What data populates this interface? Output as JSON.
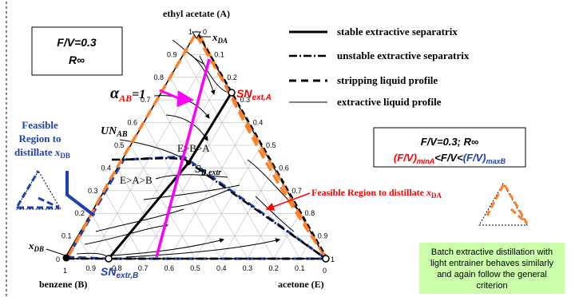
{
  "vertices": {
    "top": "ethyl acetate (A)",
    "left": "benzene (B)",
    "right": "acetone (E)"
  },
  "corner_labels": {
    "top_1": "1",
    "top_0": "0",
    "left_1": "1",
    "left_0": "0",
    "right_1": "1",
    "right_0": "0"
  },
  "left_ticks": [
    "0.9",
    "0.8",
    "0.7",
    "0.6",
    "0.5",
    "0.4",
    "0.3",
    "0.2",
    "0.1"
  ],
  "right_ticks": [
    "0.1",
    "0.2",
    "0.3",
    "0.4",
    "0.5",
    "0.6",
    "0.7",
    "0.8",
    "0.9"
  ],
  "bottom_ticks": [
    "0.9",
    "0.8",
    "0.7",
    "0.6",
    "0.5",
    "0.4",
    "0.3",
    "0.2",
    "0.1"
  ],
  "params_box": {
    "line1": "F/V=0.3",
    "line2": "R∞"
  },
  "legend": [
    {
      "label": "stable extractive separatrix",
      "style": "solid-thick"
    },
    {
      "label": "unstable extractive separatrix",
      "style": "dashdot"
    },
    {
      "label": "stripping liquid profile",
      "style": "dashed"
    },
    {
      "label": "extractive liquid profile",
      "style": "thin"
    }
  ],
  "criterion_box": {
    "line1": "F/V=0.3; R∞",
    "prefix": "(F/V)",
    "sub_min": "minA",
    "middle": "<F/V<",
    "blue_prefix": "(F/V)",
    "sub_max": "maxB"
  },
  "labels": {
    "xDA": "x",
    "xDA_sub": "DA",
    "SN_ext_A": "SN",
    "SN_ext_A_sub": "ext,A",
    "alpha": "α",
    "alpha_sub": "AB",
    "alpha_eq": "=1",
    "UN_AB": "UN",
    "UN_AB_sub": "AB",
    "region_EBA": "E>B>A",
    "region_EAB": "E>A>B",
    "S_B_extr": "S",
    "S_B_extr_sub": "B,extr",
    "xDB": "x",
    "xDB_sub": "DB",
    "SN_extr_B": "SN",
    "SN_extr_B_sub": "extr,B",
    "feasible_B_line1": "Feasible",
    "feasible_B_line2": "Region to",
    "feasible_B_line3": "distillate ",
    "feasible_B_x": "x",
    "feasible_B_sub": "DB",
    "feasible_A": "Feasible Region to distillate ",
    "feasible_A_x": "x",
    "feasible_A_sub": "DA"
  },
  "note": "Batch extractive distillation with light entrainer behaves similarly and again follow the general criterion",
  "colors": {
    "orange": "#ff7f27",
    "blue": "#1f3fb4",
    "magenta": "#ff00ff",
    "red": "#ff0000",
    "navy": "#1f2f99",
    "green_box": "#ccffaa"
  }
}
